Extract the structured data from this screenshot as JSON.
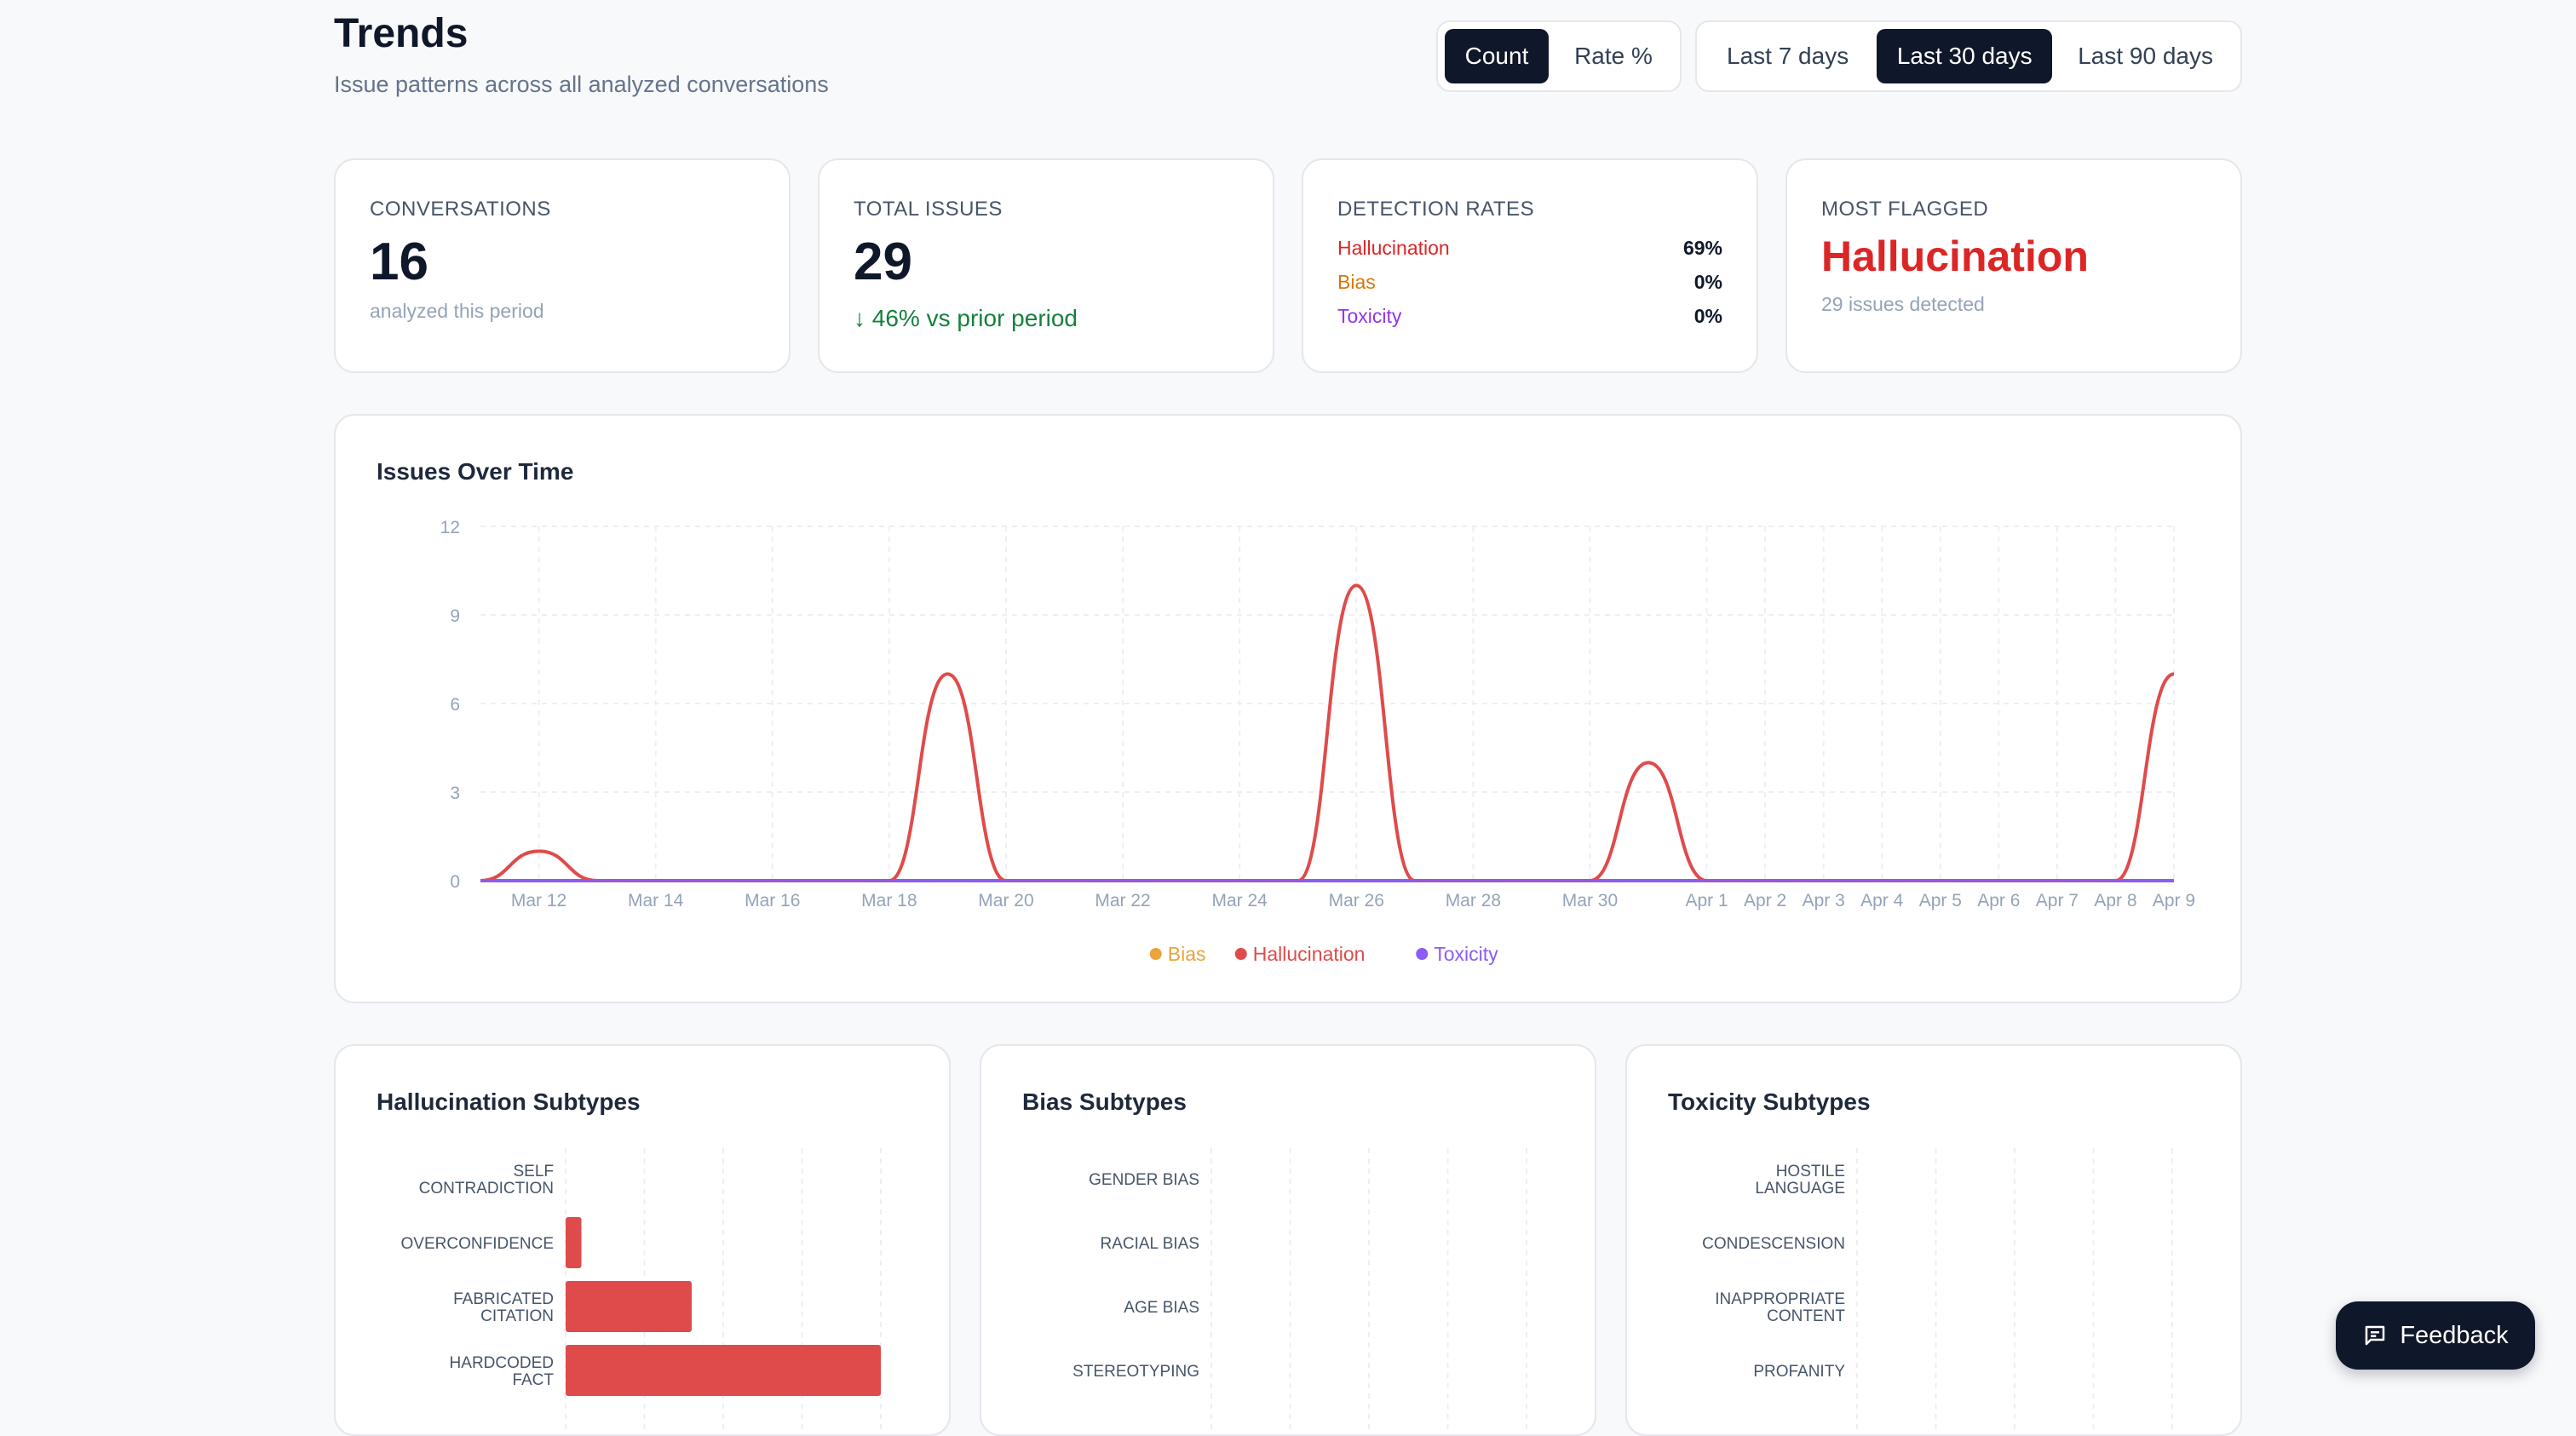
{
  "header": {
    "title": "Trends",
    "subtitle": "Issue patterns across all analyzed conversations"
  },
  "metric_toggle": {
    "options": [
      "Count",
      "Rate %"
    ],
    "selected": "Count"
  },
  "range_toggle": {
    "options": [
      "Last 7 days",
      "Last 30 days",
      "Last 90 days"
    ],
    "selected": "Last 30 days"
  },
  "kpis": {
    "conversations": {
      "label": "CONVERSATIONS",
      "value": "16",
      "sub": "analyzed this period"
    },
    "total_issues": {
      "label": "TOTAL ISSUES",
      "value": "29",
      "delta": "↓ 46% vs prior period"
    },
    "detection_rates": {
      "label": "DETECTION RATES",
      "rows": [
        {
          "name": "Hallucination",
          "value": "69%",
          "color": "#dc2626"
        },
        {
          "name": "Bias",
          "value": "0%",
          "color": "#d97706"
        },
        {
          "name": "Toxicity",
          "value": "0%",
          "color": "#9333ea"
        }
      ]
    },
    "most_flagged": {
      "label": "MOST FLAGGED",
      "value": "Hallucination",
      "sub": "29 issues detected"
    }
  },
  "colors": {
    "hallucination": "#df4b4b",
    "bias": "#eba33a",
    "toxicity": "#8b5cf6",
    "accent": "#0f172a"
  },
  "chart_data": [
    {
      "type": "line",
      "title": "Issues Over Time",
      "x": [
        "Mar 11",
        "Mar 12",
        "Mar 13",
        "Mar 14",
        "Mar 15",
        "Mar 16",
        "Mar 17",
        "Mar 18",
        "Mar 19",
        "Mar 20",
        "Mar 21",
        "Mar 22",
        "Mar 23",
        "Mar 24",
        "Mar 25",
        "Mar 26",
        "Mar 27",
        "Mar 28",
        "Mar 29",
        "Mar 30",
        "Mar 31",
        "Apr 1",
        "Apr 2",
        "Apr 3",
        "Apr 4",
        "Apr 5",
        "Apr 6",
        "Apr 7",
        "Apr 8",
        "Apr 9"
      ],
      "x_tick_labels": [
        "Mar 12",
        "Mar 14",
        "Mar 16",
        "Mar 18",
        "Mar 20",
        "Mar 22",
        "Mar 24",
        "Mar 26",
        "Mar 28",
        "Mar 30",
        "Apr 1",
        "Apr 2",
        "Apr 3",
        "Apr 4",
        "Apr 5",
        "Apr 6",
        "Apr 7",
        "Apr 8",
        "Apr 9"
      ],
      "y_ticks": [
        0,
        3,
        6,
        9,
        12
      ],
      "ylim": [
        0,
        12
      ],
      "grid": true,
      "legend_position": "bottom",
      "series": [
        {
          "name": "Bias",
          "color": "#eba33a",
          "values": [
            0,
            0,
            0,
            0,
            0,
            0,
            0,
            0,
            0,
            0,
            0,
            0,
            0,
            0,
            0,
            0,
            0,
            0,
            0,
            0,
            0,
            0,
            0,
            0,
            0,
            0,
            0,
            0,
            0,
            0
          ]
        },
        {
          "name": "Hallucination",
          "color": "#df4b4b",
          "values": [
            0,
            1,
            0,
            0,
            0,
            0,
            0,
            0,
            7,
            0,
            0,
            0,
            0,
            0,
            0,
            10,
            0,
            0,
            0,
            0,
            4,
            0,
            0,
            0,
            0,
            0,
            0,
            0,
            0,
            7
          ]
        },
        {
          "name": "Toxicity",
          "color": "#8b5cf6",
          "values": [
            0,
            0,
            0,
            0,
            0,
            0,
            0,
            0,
            0,
            0,
            0,
            0,
            0,
            0,
            0,
            0,
            0,
            0,
            0,
            0,
            0,
            0,
            0,
            0,
            0,
            0,
            0,
            0,
            0,
            0
          ]
        }
      ]
    },
    {
      "type": "bar",
      "title": "Hallucination Subtypes",
      "orientation": "horizontal",
      "categories": [
        "SELF CONTRADICTION",
        "OVERCONFIDENCE",
        "FABRICATED CITATION",
        "HARDCODED FACT"
      ],
      "values": [
        0,
        1,
        8,
        20
      ],
      "xlim": [
        0,
        20
      ],
      "grid": true,
      "color": "#df4b4b"
    },
    {
      "type": "bar",
      "title": "Bias Subtypes",
      "orientation": "horizontal",
      "categories": [
        "GENDER BIAS",
        "RACIAL BIAS",
        "AGE BIAS",
        "STEREOTYPING"
      ],
      "values": [
        0,
        0,
        0,
        0
      ],
      "grid": true,
      "color": "#eba33a"
    },
    {
      "type": "bar",
      "title": "Toxicity Subtypes",
      "orientation": "horizontal",
      "categories": [
        "HOSTILE LANGUAGE",
        "CONDESCENSION",
        "INAPPROPRIATE CONTENT",
        "PROFANITY"
      ],
      "values": [
        0,
        0,
        0,
        0
      ],
      "grid": true,
      "color": "#8b5cf6"
    }
  ],
  "feedback_button": {
    "label": "Feedback",
    "icon": "chat-icon"
  }
}
